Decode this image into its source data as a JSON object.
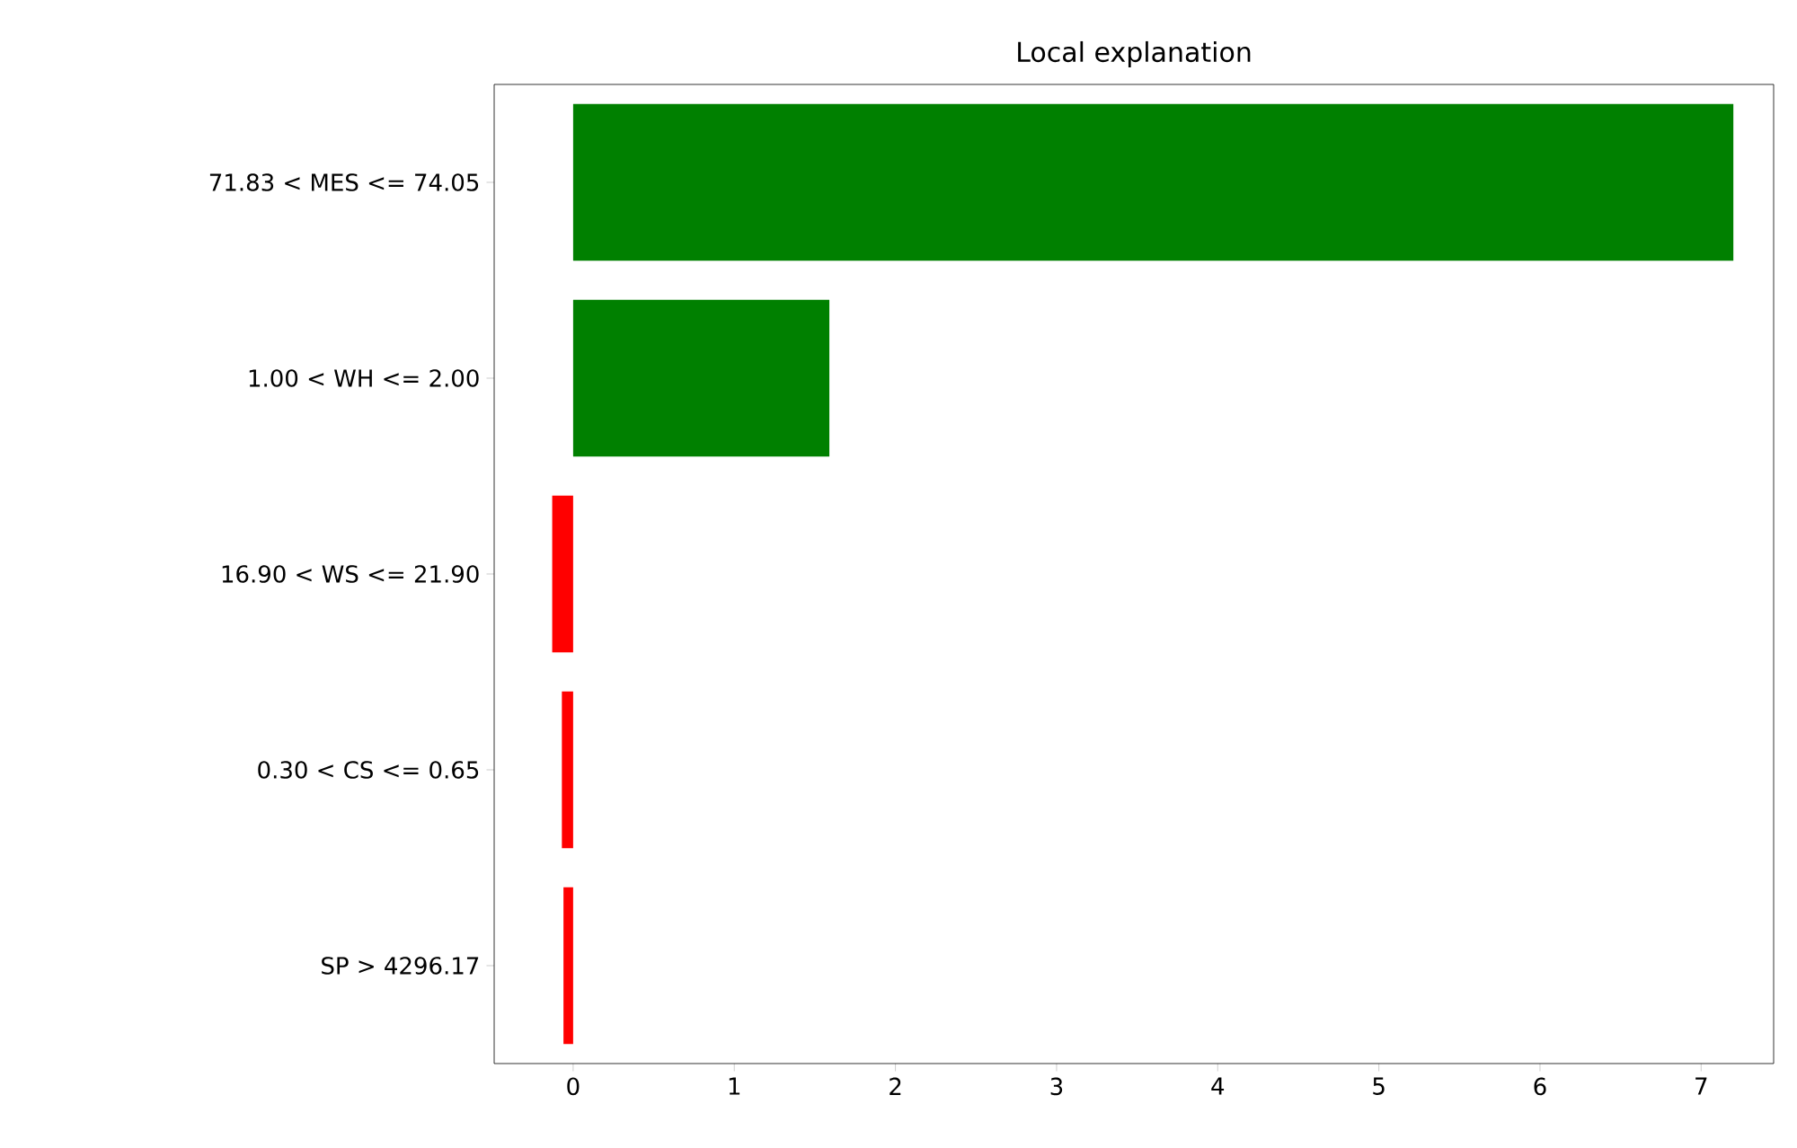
{
  "chart_data": {
    "type": "bar",
    "orientation": "horizontal",
    "title": "Local explanation",
    "categories": [
      "71.83 < MES <= 74.05",
      "1.00 < WH <= 2.00",
      "16.90 < WS <= 21.90",
      "0.30 < CS <= 0.65",
      "SP > 4296.17"
    ],
    "values": [
      7.2,
      1.59,
      -0.13,
      -0.07,
      -0.06
    ],
    "colors": [
      "#008000",
      "#008000",
      "#ff0000",
      "#ff0000",
      "#ff0000"
    ],
    "xlim": [
      -0.49,
      7.45
    ],
    "xticks": [
      0,
      1,
      2,
      3,
      4,
      5,
      6,
      7
    ],
    "grid": false
  }
}
